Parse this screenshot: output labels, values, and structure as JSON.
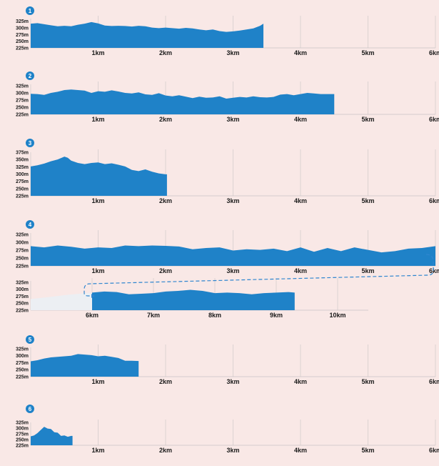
{
  "colors": {
    "background": "#f9e8e6",
    "area_fill": "#1f82c8",
    "badge": "#1f82c8",
    "connector": "#2f86cf",
    "prior_segment": "#eceff3",
    "grid": "#c9c4c4",
    "text": "#1a1a1a"
  },
  "chart_data": [
    {
      "type": "area",
      "badge": "1",
      "x_ticks": [
        {
          "v": 1,
          "label": "1km"
        },
        {
          "v": 2,
          "label": "2km"
        },
        {
          "v": 3,
          "label": "3km"
        },
        {
          "v": 4,
          "label": "4km"
        },
        {
          "v": 5,
          "label": "5km"
        },
        {
          "v": 6,
          "label": "6km"
        }
      ],
      "x_range": [
        0,
        6
      ],
      "y_ticks": [
        {
          "v": 325,
          "label": "325m"
        },
        {
          "v": 300,
          "label": "300m"
        },
        {
          "v": 275,
          "label": "275m"
        },
        {
          "v": 250,
          "label": "250m"
        },
        {
          "v": 225,
          "label": "225m"
        }
      ],
      "y_range": [
        225,
        335
      ],
      "x": [
        0,
        0.1,
        0.2,
        0.3,
        0.4,
        0.5,
        0.6,
        0.7,
        0.8,
        0.9,
        1.0,
        1.1,
        1.2,
        1.3,
        1.4,
        1.5,
        1.6,
        1.7,
        1.8,
        1.9,
        2.0,
        2.1,
        2.2,
        2.3,
        2.4,
        2.5,
        2.6,
        2.7,
        2.8,
        2.9,
        3.0,
        3.1,
        3.2,
        3.3,
        3.4,
        3.45
      ],
      "y": [
        316,
        318,
        314,
        310,
        306,
        308,
        306,
        312,
        316,
        322,
        317,
        309,
        307,
        308,
        307,
        305,
        308,
        306,
        301,
        299,
        301,
        299,
        297,
        300,
        298,
        294,
        291,
        294,
        288,
        285,
        287,
        290,
        294,
        298,
        308,
        316
      ]
    },
    {
      "type": "area",
      "badge": "2",
      "x_ticks": [
        {
          "v": 1,
          "label": "1km"
        },
        {
          "v": 2,
          "label": "2km"
        },
        {
          "v": 3,
          "label": "3km"
        },
        {
          "v": 4,
          "label": "4km"
        },
        {
          "v": 5,
          "label": "5km"
        },
        {
          "v": 6,
          "label": "6km"
        }
      ],
      "x_range": [
        0,
        6
      ],
      "y_ticks": [
        {
          "v": 325,
          "label": "325m"
        },
        {
          "v": 300,
          "label": "300m"
        },
        {
          "v": 275,
          "label": "275m"
        },
        {
          "v": 250,
          "label": "250m"
        },
        {
          "v": 225,
          "label": "225m"
        }
      ],
      "y_range": [
        225,
        330
      ],
      "x": [
        0,
        0.1,
        0.2,
        0.3,
        0.4,
        0.5,
        0.6,
        0.7,
        0.8,
        0.9,
        1.0,
        1.1,
        1.2,
        1.3,
        1.4,
        1.5,
        1.6,
        1.7,
        1.8,
        1.9,
        2.0,
        2.1,
        2.2,
        2.3,
        2.4,
        2.5,
        2.6,
        2.7,
        2.8,
        2.9,
        3.0,
        3.1,
        3.2,
        3.3,
        3.4,
        3.5,
        3.6,
        3.7,
        3.8,
        3.9,
        4.0,
        4.1,
        4.2,
        4.3,
        4.4,
        4.5
      ],
      "y": [
        297,
        296,
        293,
        300,
        304,
        310,
        312,
        310,
        308,
        300,
        306,
        304,
        309,
        305,
        300,
        298,
        302,
        295,
        293,
        299,
        291,
        288,
        292,
        287,
        282,
        287,
        283,
        284,
        288,
        280,
        283,
        286,
        284,
        288,
        285,
        284,
        286,
        294,
        296,
        292,
        296,
        300,
        298,
        296,
        296,
        296
      ]
    },
    {
      "type": "area",
      "badge": "3",
      "x_ticks": [
        {
          "v": 1,
          "label": "1km"
        },
        {
          "v": 2,
          "label": "2km"
        },
        {
          "v": 3,
          "label": "3km"
        },
        {
          "v": 4,
          "label": "4km"
        },
        {
          "v": 5,
          "label": "5km"
        },
        {
          "v": 6,
          "label": "6km"
        }
      ],
      "x_range": [
        0,
        6
      ],
      "y_ticks": [
        {
          "v": 375,
          "label": "375m"
        },
        {
          "v": 350,
          "label": "350m"
        },
        {
          "v": 325,
          "label": "325m"
        },
        {
          "v": 300,
          "label": "300m"
        },
        {
          "v": 275,
          "label": "275m"
        },
        {
          "v": 250,
          "label": "250m"
        },
        {
          "v": 225,
          "label": "225m"
        }
      ],
      "y_range": [
        225,
        375
      ],
      "x": [
        0,
        0.1,
        0.2,
        0.3,
        0.4,
        0.5,
        0.55,
        0.6,
        0.7,
        0.8,
        0.9,
        1.0,
        1.1,
        1.2,
        1.3,
        1.4,
        1.5,
        1.6,
        1.7,
        1.8,
        1.9,
        2.0,
        2.02
      ],
      "y": [
        326,
        330,
        336,
        344,
        350,
        360,
        356,
        346,
        338,
        334,
        338,
        340,
        334,
        337,
        332,
        326,
        314,
        310,
        316,
        308,
        302,
        299,
        299
      ]
    },
    {
      "type": "area",
      "badge": "4",
      "x_ticks": [
        {
          "v": 1,
          "label": "1km"
        },
        {
          "v": 2,
          "label": "2km"
        },
        {
          "v": 3,
          "label": "3km"
        },
        {
          "v": 4,
          "label": "4km"
        },
        {
          "v": 5,
          "label": "5km"
        },
        {
          "v": 6,
          "label": "6km"
        }
      ],
      "x_range": [
        0,
        6
      ],
      "y_ticks": [
        {
          "v": 325,
          "label": "325m"
        },
        {
          "v": 300,
          "label": "300m"
        },
        {
          "v": 275,
          "label": "275m"
        },
        {
          "v": 250,
          "label": "250m"
        },
        {
          "v": 225,
          "label": "225m"
        }
      ],
      "y_range": [
        225,
        330
      ],
      "x": [
        0,
        0.2,
        0.4,
        0.6,
        0.8,
        1.0,
        1.2,
        1.4,
        1.6,
        1.8,
        2.0,
        2.2,
        2.4,
        2.6,
        2.8,
        3.0,
        3.2,
        3.4,
        3.6,
        3.8,
        4.0,
        4.2,
        4.4,
        4.6,
        4.8,
        5.0,
        5.2,
        5.4,
        5.6,
        5.8,
        6.0
      ],
      "y": [
        288,
        284,
        290,
        286,
        280,
        284,
        282,
        290,
        288,
        290,
        289,
        287,
        278,
        282,
        284,
        274,
        278,
        276,
        280,
        272,
        284,
        270,
        282,
        272,
        284,
        276,
        268,
        272,
        280,
        282,
        288
      ]
    },
    {
      "type": "area",
      "badge": "",
      "x_ticks": [
        {
          "v": 6,
          "label": "6km"
        },
        {
          "v": 7,
          "label": "7km"
        },
        {
          "v": 8,
          "label": "8km"
        },
        {
          "v": 9,
          "label": "9km"
        },
        {
          "v": 10,
          "label": "10km"
        }
      ],
      "x_range": [
        5,
        10.5
      ],
      "y_ticks": [
        {
          "v": 325,
          "label": "325m"
        },
        {
          "v": 300,
          "label": "300m"
        },
        {
          "v": 275,
          "label": "275m"
        },
        {
          "v": 250,
          "label": "250m"
        },
        {
          "v": 225,
          "label": "225m"
        }
      ],
      "y_range": [
        225,
        330
      ],
      "prior_x": [
        5,
        5.3,
        5.6,
        5.8,
        6.0
      ],
      "prior_y": [
        265,
        272,
        280,
        284,
        288
      ],
      "x": [
        6.0,
        6.2,
        6.4,
        6.6,
        6.8,
        7.0,
        7.2,
        7.4,
        7.6,
        7.8,
        8.0,
        8.2,
        8.4,
        8.6,
        8.8,
        9.0,
        9.2,
        9.3
      ],
      "y": [
        288,
        292,
        290,
        282,
        284,
        286,
        292,
        294,
        298,
        294,
        286,
        288,
        286,
        282,
        286,
        288,
        290,
        288
      ]
    },
    {
      "type": "area",
      "badge": "5",
      "x_ticks": [
        {
          "v": 1,
          "label": "1km"
        },
        {
          "v": 2,
          "label": "2km"
        },
        {
          "v": 3,
          "label": "3km"
        },
        {
          "v": 4,
          "label": "4km"
        },
        {
          "v": 5,
          "label": "5km"
        },
        {
          "v": 6,
          "label": "6km"
        }
      ],
      "x_range": [
        0,
        6
      ],
      "y_ticks": [
        {
          "v": 325,
          "label": "325m"
        },
        {
          "v": 300,
          "label": "300m"
        },
        {
          "v": 275,
          "label": "275m"
        },
        {
          "v": 250,
          "label": "250m"
        },
        {
          "v": 225,
          "label": "225m"
        }
      ],
      "y_range": [
        225,
        330
      ],
      "x": [
        0,
        0.1,
        0.2,
        0.3,
        0.4,
        0.5,
        0.6,
        0.7,
        0.8,
        0.9,
        1.0,
        1.1,
        1.2,
        1.3,
        1.4,
        1.5,
        1.6
      ],
      "y": [
        280,
        284,
        290,
        294,
        296,
        298,
        300,
        306,
        304,
        302,
        298,
        300,
        296,
        292,
        282,
        282,
        281
      ]
    },
    {
      "type": "area",
      "badge": "6",
      "x_ticks": [
        {
          "v": 1,
          "label": "1km"
        },
        {
          "v": 2,
          "label": "2km"
        },
        {
          "v": 3,
          "label": "3km"
        },
        {
          "v": 4,
          "label": "4km"
        },
        {
          "v": 5,
          "label": "5km"
        },
        {
          "v": 6,
          "label": "6km"
        }
      ],
      "x_range": [
        0,
        6
      ],
      "y_ticks": [
        {
          "v": 325,
          "label": "325m"
        },
        {
          "v": 300,
          "label": "300m"
        },
        {
          "v": 275,
          "label": "275m"
        },
        {
          "v": 250,
          "label": "250m"
        },
        {
          "v": 225,
          "label": "225m"
        }
      ],
      "y_range": [
        225,
        325
      ],
      "x": [
        0,
        0.05,
        0.1,
        0.15,
        0.2,
        0.25,
        0.3,
        0.35,
        0.4,
        0.45,
        0.5,
        0.55,
        0.6,
        0.62
      ],
      "y": [
        264,
        268,
        278,
        292,
        306,
        298,
        296,
        282,
        280,
        266,
        268,
        262,
        266,
        266
      ]
    }
  ]
}
